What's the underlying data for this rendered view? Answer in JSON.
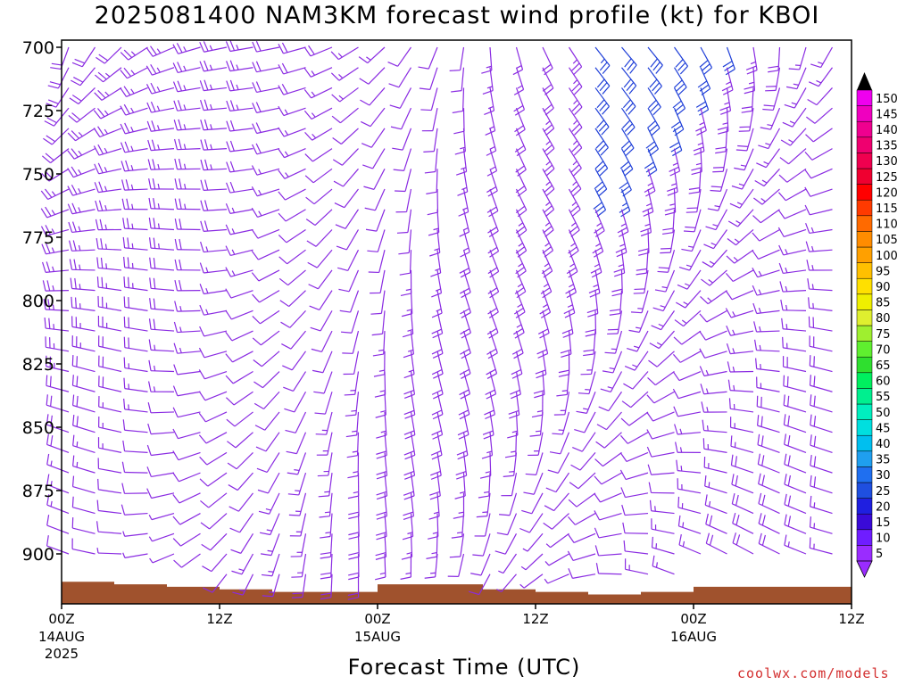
{
  "title": "2025081400 NAM3KM forecast wind profile (kt) for KBOI",
  "credit": "coolwx.com/models",
  "colors": {
    "terrain": "#a0522d",
    "barb_default": "#8a2be2",
    "barb_fast": "#1f3fd8"
  },
  "chart_data": {
    "type": "wind-barb-profile",
    "title": "2025081400 NAM3KM forecast wind profile (kt) for KBOI",
    "xlabel": "Forecast Time (UTC)",
    "ylabel": "",
    "x_ticks": [
      {
        "hour": 0,
        "label": "00Z",
        "sub": "14AUG",
        "sub2": "2025"
      },
      {
        "hour": 12,
        "label": "12Z",
        "sub": "",
        "sub2": ""
      },
      {
        "hour": 24,
        "label": "00Z",
        "sub": "15AUG",
        "sub2": ""
      },
      {
        "hour": 36,
        "label": "12Z",
        "sub": "",
        "sub2": ""
      },
      {
        "hour": 48,
        "label": "00Z",
        "sub": "16AUG",
        "sub2": ""
      },
      {
        "hour": 60,
        "label": "12Z",
        "sub": "",
        "sub2": ""
      }
    ],
    "xlim": [
      0,
      60
    ],
    "y_ticks": [
      700,
      725,
      750,
      775,
      800,
      825,
      850,
      875,
      900
    ],
    "ylim_hpa": [
      698,
      918
    ],
    "forecast_hours": [
      0,
      2,
      4,
      6,
      8,
      10,
      12,
      14,
      16,
      18,
      20,
      22,
      24,
      26,
      28,
      30,
      32,
      34,
      36,
      38,
      40,
      42,
      44,
      46,
      48,
      50,
      52,
      54,
      56,
      58,
      60
    ],
    "levels_hpa": [
      700,
      708,
      716,
      724,
      732,
      740,
      748,
      756,
      764,
      772,
      780,
      788,
      796,
      804,
      812,
      820,
      828,
      836,
      844,
      852,
      860,
      868,
      876,
      884,
      892,
      900,
      908
    ],
    "surface_pressure_hpa": [
      {
        "hour": 0,
        "p": 911
      },
      {
        "hour": 4,
        "p": 912
      },
      {
        "hour": 8,
        "p": 913
      },
      {
        "hour": 12,
        "p": 914
      },
      {
        "hour": 16,
        "p": 915
      },
      {
        "hour": 20,
        "p": 915
      },
      {
        "hour": 24,
        "p": 912
      },
      {
        "hour": 28,
        "p": 912
      },
      {
        "hour": 32,
        "p": 914
      },
      {
        "hour": 36,
        "p": 915
      },
      {
        "hour": 40,
        "p": 916
      },
      {
        "hour": 44,
        "p": 915
      },
      {
        "hour": 48,
        "p": 913
      },
      {
        "hour": 52,
        "p": 913
      },
      {
        "hour": 56,
        "p": 913
      },
      {
        "hour": 60,
        "p": 914
      }
    ],
    "colorbar": {
      "labels": [
        5,
        10,
        15,
        20,
        25,
        30,
        35,
        40,
        45,
        50,
        55,
        60,
        65,
        70,
        75,
        80,
        85,
        90,
        95,
        100,
        105,
        110,
        115,
        120,
        125,
        130,
        135,
        140,
        145,
        150
      ],
      "colors": [
        "#9a2cff",
        "#6f1dff",
        "#3a0ad8",
        "#1f1fe0",
        "#1f4fe0",
        "#1f6ff0",
        "#1f9fef",
        "#00bfef",
        "#00dfdf",
        "#00efbf",
        "#00ef8f",
        "#00ef5f",
        "#2fdf2f",
        "#5fef2f",
        "#9fef2f",
        "#dfef2f",
        "#efef00",
        "#ffe000",
        "#ffc000",
        "#ffa000",
        "#ff8c00",
        "#ff6a00",
        "#ff3a00",
        "#ff0000",
        "#ef0030",
        "#ef004f",
        "#ef006f",
        "#ef008f",
        "#ef00bf",
        "#ef00ef"
      ]
    }
  }
}
